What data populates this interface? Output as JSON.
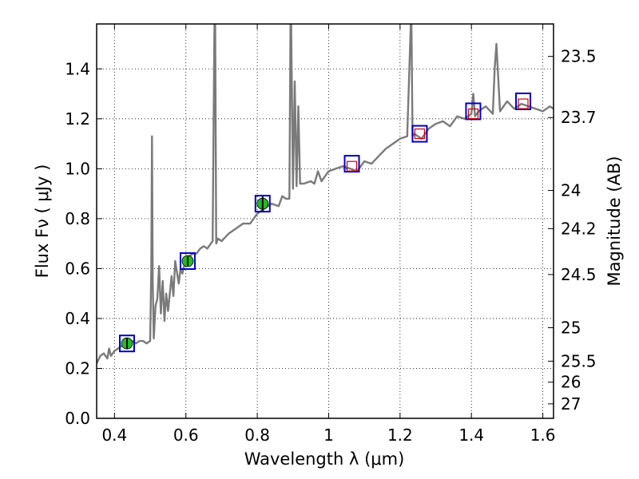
{
  "chart_data": {
    "type": "scatter",
    "xlabel": "Wavelength  λ (μm)",
    "ylabel": "Flux  Fν  ( μJy )",
    "y2label": "Magnitude (AB)",
    "xlim": [
      0.35,
      1.63
    ],
    "ylim": [
      0.0,
      1.58
    ],
    "grid": true,
    "x_ticks": [
      0.4,
      0.6,
      0.8,
      1.0,
      1.2,
      1.4,
      1.6
    ],
    "x_tick_labels": [
      "0.4",
      "0.6",
      "0.8",
      "1",
      "1.2",
      "1.4",
      "1.6"
    ],
    "y_ticks": [
      0.0,
      0.2,
      0.4,
      0.6,
      0.8,
      1.0,
      1.2,
      1.4
    ],
    "y_tick_labels": [
      "0.0",
      "0.2",
      "0.4",
      "0.6",
      "0.8",
      "1.0",
      "1.2",
      "1.4"
    ],
    "y2_ticks": [
      {
        "label": "23.5",
        "flux": 1.45
      },
      {
        "label": "23.7",
        "flux": 1.205
      },
      {
        "label": "24",
        "flux": 0.913
      },
      {
        "label": "24.2",
        "flux": 0.76
      },
      {
        "label": "24.5",
        "flux": 0.576
      },
      {
        "label": "25",
        "flux": 0.363
      },
      {
        "label": "25.5",
        "flux": 0.229
      },
      {
        "label": "26",
        "flux": 0.145
      },
      {
        "label": "27",
        "flux": 0.058
      }
    ],
    "colors": {
      "spectrum": "#7a7a7a",
      "model_marker_edge": "#0000cc",
      "obs_marker_fill": "#22bb22",
      "pred_marker_edge": "#cc0000",
      "grid": "#000000"
    },
    "series": [
      {
        "kind": "spectrum",
        "x": [
          0.35,
          0.36,
          0.37,
          0.38,
          0.385,
          0.39,
          0.4,
          0.41,
          0.42,
          0.43,
          0.44,
          0.45,
          0.46,
          0.47,
          0.48,
          0.49,
          0.5,
          0.503,
          0.505,
          0.507,
          0.51,
          0.515,
          0.52,
          0.525,
          0.53,
          0.535,
          0.54,
          0.545,
          0.55,
          0.56,
          0.565,
          0.57,
          0.58,
          0.585,
          0.59,
          0.6,
          0.61,
          0.62,
          0.63,
          0.64,
          0.65,
          0.66,
          0.67,
          0.675,
          0.68,
          0.682,
          0.685,
          0.69,
          0.7,
          0.72,
          0.74,
          0.76,
          0.78,
          0.8,
          0.82,
          0.84,
          0.86,
          0.87,
          0.88,
          0.89,
          0.893,
          0.895,
          0.9,
          0.905,
          0.91,
          0.915,
          0.92,
          0.93,
          0.95,
          0.96,
          0.97,
          0.98,
          0.99,
          1.0,
          1.02,
          1.04,
          1.06,
          1.08,
          1.1,
          1.12,
          1.14,
          1.16,
          1.18,
          1.2,
          1.22,
          1.23,
          1.232,
          1.235,
          1.24,
          1.26,
          1.28,
          1.3,
          1.32,
          1.34,
          1.36,
          1.38,
          1.4,
          1.405,
          1.41,
          1.42,
          1.44,
          1.46,
          1.465,
          1.47,
          1.48,
          1.5,
          1.52,
          1.54,
          1.56,
          1.58,
          1.6,
          1.62,
          1.63
        ],
        "y": [
          0.22,
          0.25,
          0.26,
          0.24,
          0.28,
          0.25,
          0.27,
          0.28,
          0.29,
          0.3,
          0.29,
          0.31,
          0.3,
          0.31,
          0.31,
          0.3,
          0.31,
          0.6,
          1.13,
          0.55,
          0.32,
          0.45,
          0.48,
          0.61,
          0.42,
          0.55,
          0.39,
          0.5,
          0.43,
          0.57,
          0.49,
          0.63,
          0.54,
          0.6,
          0.58,
          0.64,
          0.65,
          0.66,
          0.66,
          0.68,
          0.69,
          0.68,
          0.7,
          0.71,
          1.58,
          1.58,
          0.7,
          0.72,
          0.71,
          0.74,
          0.76,
          0.78,
          0.78,
          0.82,
          0.84,
          0.86,
          0.85,
          0.89,
          0.88,
          0.88,
          1.58,
          1.58,
          0.92,
          1.35,
          0.93,
          1.25,
          0.94,
          0.94,
          0.95,
          0.94,
          0.99,
          0.95,
          0.97,
          0.99,
          1.0,
          1.01,
          1.0,
          0.99,
          1.03,
          1.02,
          1.05,
          1.08,
          1.1,
          1.12,
          1.13,
          1.58,
          1.58,
          1.13,
          1.14,
          1.12,
          1.16,
          1.18,
          1.19,
          1.17,
          1.21,
          1.2,
          1.22,
          1.3,
          1.21,
          1.23,
          1.25,
          1.22,
          1.4,
          1.5,
          1.23,
          1.27,
          1.24,
          1.26,
          1.25,
          1.24,
          1.23,
          1.25,
          1.24
        ]
      },
      {
        "kind": "observed",
        "x": [
          0.435,
          0.605,
          0.815
        ],
        "y": [
          0.3,
          0.63,
          0.86
        ],
        "yerr": [
          0.02,
          0.02,
          0.03
        ]
      },
      {
        "kind": "model_photometry",
        "x": [
          0.435,
          0.605,
          0.815,
          1.065,
          1.255,
          1.405,
          1.545
        ],
        "y": [
          0.3,
          0.63,
          0.86,
          1.02,
          1.14,
          1.23,
          1.27
        ]
      },
      {
        "kind": "predicted",
        "x": [
          1.065,
          1.255,
          1.405,
          1.545
        ],
        "y": [
          1.01,
          1.14,
          1.22,
          1.26
        ]
      }
    ]
  }
}
